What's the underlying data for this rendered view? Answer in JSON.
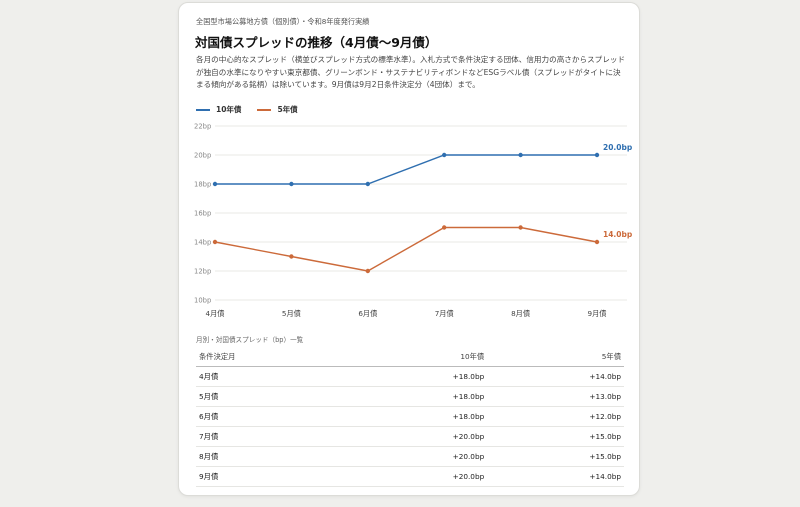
{
  "header": {
    "kicker": "全国型市場公募地方債（個別債）・令和8年度発行実績",
    "title": "対国債スプレッドの推移（4月債〜9月債）",
    "description": "各月の中心的なスプレッド（横並びスプレッド方式の標準水準）。入札方式で条件決定する団体、信用力の高さからスプレッドが独自の水準になりやすい東京都債、グリーンボンド・サステナビリティボンドなどESGラベル債（スプレッドがタイトに決まる傾向がある銘柄）は除いています。9月債は9月2日条件決定分（4団体）まで。"
  },
  "colors": {
    "series_10y": "#2f6fb0",
    "series_5y": "#cc6a3a",
    "grid": "#e8e8e5"
  },
  "chart_data": {
    "type": "line",
    "categories": [
      "4月債",
      "5月債",
      "6月債",
      "7月債",
      "8月債",
      "9月債"
    ],
    "y_ticks": [
      "10bp",
      "12bp",
      "14bp",
      "16bp",
      "18bp",
      "20bp",
      "22bp"
    ],
    "ylim": [
      10,
      22
    ],
    "grid": true,
    "legend_position": "top-left",
    "series": [
      {
        "name": "10年債",
        "values": [
          18,
          18,
          18,
          20,
          20,
          20
        ],
        "end_label": "20.0bp",
        "color": "#2f6fb0"
      },
      {
        "name": "5年債",
        "values": [
          14,
          13,
          12,
          15,
          15,
          14
        ],
        "end_label": "14.0bp",
        "color": "#cc6a3a"
      }
    ]
  },
  "table": {
    "caption": "月別・対国債スプレッド（bp）一覧",
    "headers": [
      "条件決定月",
      "10年債",
      "5年債"
    ],
    "rows": [
      [
        "4月債",
        "+18.0bp",
        "+14.0bp"
      ],
      [
        "5月債",
        "+18.0bp",
        "+13.0bp"
      ],
      [
        "6月債",
        "+18.0bp",
        "+12.0bp"
      ],
      [
        "7月債",
        "+20.0bp",
        "+15.0bp"
      ],
      [
        "8月債",
        "+20.0bp",
        "+15.0bp"
      ],
      [
        "9月債",
        "+20.0bp",
        "+14.0bp"
      ]
    ]
  }
}
